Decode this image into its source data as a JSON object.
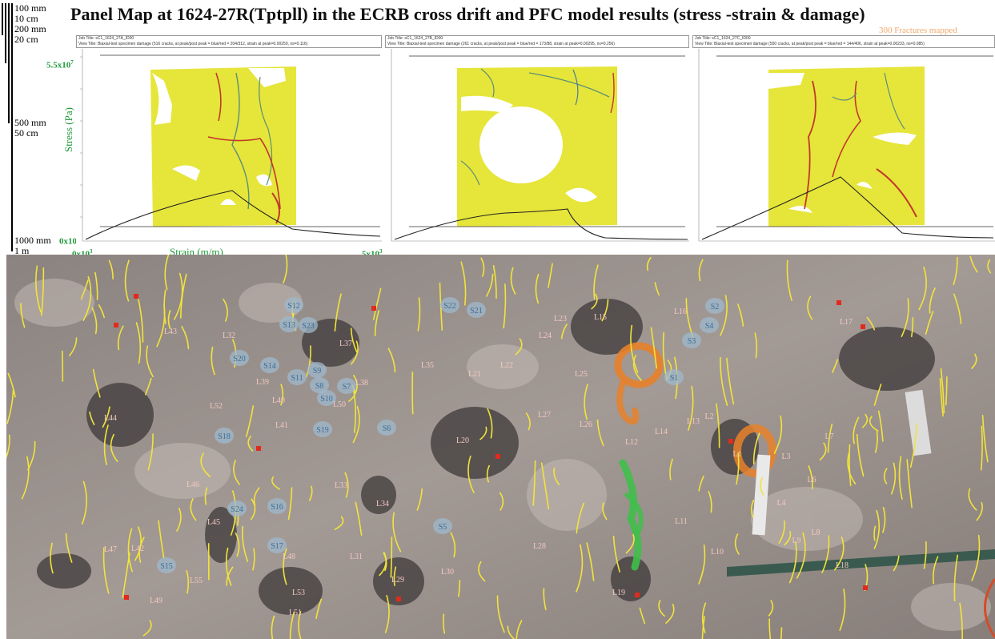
{
  "title": "Panel Map at 1624-27R(Tptpll) in the ECRB cross drift and PFC model results (stress -strain & damage)",
  "fracture_count": "300 Fractures mapped",
  "scale": {
    "s100mm": "100 mm",
    "s10cm": "10 cm",
    "s200mm": "200 mm",
    "s20cm": "20 cm",
    "s500mm": "500 mm",
    "s50cm": "50 cm",
    "s1000mm": "1000 mm",
    "s1m": "1 m"
  },
  "axes": {
    "ymax": "5.5x10",
    "ymin": "0x10",
    "xmin": "0x10",
    "xmax": "5x10",
    "ylabel": "Stress (Pa)",
    "xlabel": "Strain (m/m)"
  },
  "panels": [
    {
      "job": "Job Title: sC1_1624_27A_ID00",
      "view": "View Title: Biaxial-test specimen damage (516 cracks, at peak/post peak = blue/red = 204/312, strain at peak=0.00259, ns=0.116)"
    },
    {
      "job": "Job Title: sC1_1624_27B_ID00",
      "view": "View Title: Biaxial-test specimen damage (261 cracks, at peak/post peak = blue/red = 173/88, strain at peak=0.00295, ns=0.256)"
    },
    {
      "job": "Job Title: sC1_1624_27C_ID00",
      "view": "View Title: Biaxial-test specimen damage (550 cracks, at peak/post peak = blue/red = 144/406, strain at peak=0.00233, ns=0.085)"
    }
  ],
  "labels": {
    "red": [
      "L43",
      "L32",
      "L37",
      "L39",
      "L52",
      "L40",
      "L41",
      "L38",
      "L50",
      "L33",
      "L34",
      "L35",
      "L21",
      "L22",
      "L23",
      "L24",
      "L25",
      "L27",
      "L26",
      "L20",
      "L15",
      "L16",
      "L12",
      "L14",
      "L13",
      "L2",
      "L1",
      "L3",
      "L7",
      "L4",
      "L6",
      "L8",
      "L9",
      "L11",
      "L10",
      "L17",
      "L44",
      "L46",
      "L45",
      "L42",
      "L47",
      "L48",
      "L53",
      "L31",
      "L29",
      "L30",
      "L28",
      "L19",
      "L18",
      "L49",
      "L51",
      "L55"
    ],
    "blue": [
      "S12",
      "S13",
      "S23",
      "S22",
      "S21",
      "S2",
      "S4",
      "S3",
      "S20",
      "S14",
      "S11",
      "S9",
      "S8",
      "S7",
      "S10",
      "S1",
      "S18",
      "S19",
      "S6",
      "S24",
      "S16",
      "S5",
      "S17",
      "S15"
    ]
  }
}
